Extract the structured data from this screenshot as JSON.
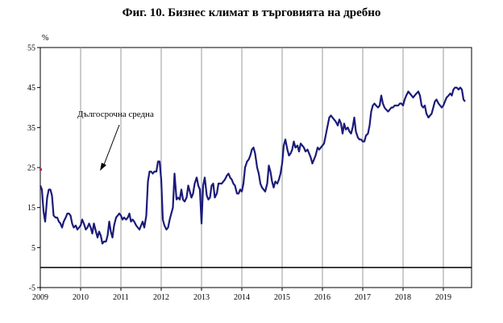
{
  "title": "Фиг. 10. Бизнес климат в търговията на дребно",
  "chart_data": {
    "type": "line",
    "unit": "%",
    "ylim": [
      -5,
      55
    ],
    "yticks": [
      -5,
      5,
      15,
      25,
      35,
      45,
      55
    ],
    "x_years": [
      "2009",
      "2010",
      "2011",
      "2012",
      "2013",
      "2014",
      "2015",
      "2016",
      "2017",
      "2018",
      "2019"
    ],
    "xlim": [
      2009.0,
      2019.7
    ],
    "grid": "vertical year lines",
    "zero_line": 0,
    "long_term_average": 24.5,
    "annotation": "Дългосрочна средна",
    "series_color": "#1a1a7a",
    "series": [
      {
        "values": [
          [
            2009.0,
            20.5
          ],
          [
            2009.04,
            19.5
          ],
          [
            2009.08,
            14.0
          ],
          [
            2009.12,
            11.5
          ],
          [
            2009.17,
            17.5
          ],
          [
            2009.21,
            19.5
          ],
          [
            2009.25,
            19.5
          ],
          [
            2009.29,
            18.0
          ],
          [
            2009.33,
            13.0
          ],
          [
            2009.38,
            12.5
          ],
          [
            2009.42,
            12.5
          ],
          [
            2009.46,
            11.5
          ],
          [
            2009.5,
            11.0
          ],
          [
            2009.54,
            10.0
          ],
          [
            2009.58,
            11.5
          ],
          [
            2009.63,
            12.5
          ],
          [
            2009.67,
            13.5
          ],
          [
            2009.71,
            13.5
          ],
          [
            2009.75,
            13.0
          ],
          [
            2009.79,
            11.0
          ],
          [
            2009.83,
            10.0
          ],
          [
            2009.88,
            10.5
          ],
          [
            2009.92,
            9.5
          ],
          [
            2010.0,
            10.5
          ],
          [
            2010.04,
            12.0
          ],
          [
            2010.08,
            11.0
          ],
          [
            2010.13,
            9.5
          ],
          [
            2010.17,
            10.0
          ],
          [
            2010.21,
            11.0
          ],
          [
            2010.25,
            10.0
          ],
          [
            2010.29,
            8.5
          ],
          [
            2010.33,
            11.0
          ],
          [
            2010.38,
            9.0
          ],
          [
            2010.42,
            7.5
          ],
          [
            2010.46,
            9.0
          ],
          [
            2010.5,
            8.0
          ],
          [
            2010.54,
            6.0
          ],
          [
            2010.58,
            6.5
          ],
          [
            2010.63,
            6.5
          ],
          [
            2010.67,
            8.0
          ],
          [
            2010.71,
            11.5
          ],
          [
            2010.75,
            9.0
          ],
          [
            2010.79,
            7.5
          ],
          [
            2010.83,
            10.5
          ],
          [
            2010.88,
            12.5
          ],
          [
            2010.92,
            13.0
          ],
          [
            2010.96,
            13.5
          ],
          [
            2011.0,
            13.0
          ],
          [
            2011.04,
            12.0
          ],
          [
            2011.08,
            12.5
          ],
          [
            2011.13,
            12.0
          ],
          [
            2011.17,
            12.5
          ],
          [
            2011.21,
            13.5
          ],
          [
            2011.25,
            11.5
          ],
          [
            2011.29,
            12.0
          ],
          [
            2011.33,
            11.5
          ],
          [
            2011.38,
            10.5
          ],
          [
            2011.42,
            10.0
          ],
          [
            2011.46,
            9.5
          ],
          [
            2011.5,
            10.5
          ],
          [
            2011.54,
            11.5
          ],
          [
            2011.58,
            10.0
          ],
          [
            2011.63,
            13.0
          ],
          [
            2011.67,
            21.5
          ],
          [
            2011.71,
            24.0
          ],
          [
            2011.75,
            24.0
          ],
          [
            2011.79,
            23.5
          ],
          [
            2011.83,
            24.0
          ],
          [
            2011.88,
            24.0
          ],
          [
            2011.92,
            26.5
          ],
          [
            2011.96,
            26.5
          ],
          [
            2012.0,
            22.0
          ],
          [
            2012.04,
            12.0
          ],
          [
            2012.08,
            10.5
          ],
          [
            2012.13,
            9.5
          ],
          [
            2012.17,
            10.0
          ],
          [
            2012.21,
            12.0
          ],
          [
            2012.25,
            13.5
          ],
          [
            2012.29,
            15.0
          ],
          [
            2012.33,
            23.5
          ],
          [
            2012.38,
            17.0
          ],
          [
            2012.42,
            17.5
          ],
          [
            2012.46,
            17.0
          ],
          [
            2012.5,
            19.5
          ],
          [
            2012.54,
            17.0
          ],
          [
            2012.58,
            16.5
          ],
          [
            2012.63,
            17.5
          ],
          [
            2012.67,
            20.5
          ],
          [
            2012.71,
            19.0
          ],
          [
            2012.75,
            17.5
          ],
          [
            2012.79,
            18.5
          ],
          [
            2012.83,
            21.0
          ],
          [
            2012.88,
            22.5
          ],
          [
            2012.92,
            20.5
          ],
          [
            2012.96,
            19.5
          ],
          [
            2013.0,
            11.0
          ],
          [
            2013.04,
            20.5
          ],
          [
            2013.08,
            22.5
          ],
          [
            2013.13,
            18.0
          ],
          [
            2013.17,
            17.0
          ],
          [
            2013.21,
            17.5
          ],
          [
            2013.25,
            20.5
          ],
          [
            2013.29,
            21.0
          ],
          [
            2013.33,
            17.5
          ],
          [
            2013.38,
            18.5
          ],
          [
            2013.42,
            21.0
          ],
          [
            2013.46,
            21.0
          ],
          [
            2013.5,
            21.0
          ],
          [
            2013.54,
            21.5
          ],
          [
            2013.58,
            22.0
          ],
          [
            2013.63,
            23.0
          ],
          [
            2013.67,
            23.5
          ],
          [
            2013.71,
            22.5
          ],
          [
            2013.75,
            22.0
          ],
          [
            2013.79,
            21.0
          ],
          [
            2013.83,
            20.5
          ],
          [
            2013.88,
            18.5
          ],
          [
            2013.92,
            18.5
          ],
          [
            2013.96,
            19.5
          ],
          [
            2014.0,
            19.0
          ],
          [
            2014.04,
            21.0
          ],
          [
            2014.08,
            25.0
          ],
          [
            2014.13,
            26.5
          ],
          [
            2014.17,
            27.0
          ],
          [
            2014.21,
            28.0
          ],
          [
            2014.25,
            29.5
          ],
          [
            2014.29,
            30.0
          ],
          [
            2014.33,
            28.5
          ],
          [
            2014.38,
            25.0
          ],
          [
            2014.42,
            23.5
          ],
          [
            2014.46,
            21.0
          ],
          [
            2014.5,
            20.0
          ],
          [
            2014.54,
            19.5
          ],
          [
            2014.58,
            19.0
          ],
          [
            2014.63,
            21.0
          ],
          [
            2014.67,
            25.5
          ],
          [
            2014.71,
            24.0
          ],
          [
            2014.75,
            21.5
          ],
          [
            2014.79,
            20.0
          ],
          [
            2014.83,
            21.5
          ],
          [
            2014.88,
            21.0
          ],
          [
            2014.92,
            22.0
          ],
          [
            2014.96,
            23.5
          ],
          [
            2015.0,
            26.0
          ],
          [
            2015.04,
            30.5
          ],
          [
            2015.08,
            32.0
          ],
          [
            2015.13,
            29.5
          ],
          [
            2015.17,
            28.0
          ],
          [
            2015.21,
            28.5
          ],
          [
            2015.25,
            29.5
          ],
          [
            2015.29,
            31.5
          ],
          [
            2015.33,
            30.0
          ],
          [
            2015.38,
            30.5
          ],
          [
            2015.42,
            29.0
          ],
          [
            2015.46,
            31.0
          ],
          [
            2015.5,
            30.5
          ],
          [
            2015.54,
            30.0
          ],
          [
            2015.58,
            29.0
          ],
          [
            2015.63,
            29.5
          ],
          [
            2015.67,
            28.5
          ],
          [
            2015.71,
            27.5
          ],
          [
            2015.75,
            26.0
          ],
          [
            2015.79,
            27.0
          ],
          [
            2015.83,
            28.0
          ],
          [
            2015.88,
            30.0
          ],
          [
            2015.92,
            29.5
          ],
          [
            2015.96,
            30.0
          ],
          [
            2016.0,
            30.5
          ],
          [
            2016.04,
            31.0
          ],
          [
            2016.08,
            33.0
          ],
          [
            2016.13,
            35.5
          ],
          [
            2016.17,
            37.5
          ],
          [
            2016.21,
            38.0
          ],
          [
            2016.25,
            37.5
          ],
          [
            2016.29,
            37.0
          ],
          [
            2016.33,
            36.5
          ],
          [
            2016.38,
            35.5
          ],
          [
            2016.42,
            37.0
          ],
          [
            2016.46,
            36.0
          ],
          [
            2016.5,
            33.5
          ],
          [
            2016.54,
            36.0
          ],
          [
            2016.58,
            34.5
          ],
          [
            2016.63,
            35.0
          ],
          [
            2016.67,
            34.0
          ],
          [
            2016.71,
            33.5
          ],
          [
            2016.75,
            35.0
          ],
          [
            2016.79,
            37.5
          ],
          [
            2016.83,
            34.0
          ],
          [
            2016.88,
            32.5
          ],
          [
            2016.92,
            32.0
          ],
          [
            2016.96,
            32.0
          ],
          [
            2017.0,
            31.5
          ],
          [
            2017.04,
            31.5
          ],
          [
            2017.08,
            33.0
          ],
          [
            2017.13,
            33.5
          ],
          [
            2017.17,
            35.5
          ],
          [
            2017.21,
            39.0
          ],
          [
            2017.25,
            40.5
          ],
          [
            2017.29,
            41.0
          ],
          [
            2017.33,
            40.5
          ],
          [
            2017.38,
            40.0
          ],
          [
            2017.42,
            40.5
          ],
          [
            2017.46,
            43.0
          ],
          [
            2017.5,
            41.0
          ],
          [
            2017.54,
            40.0
          ],
          [
            2017.58,
            39.5
          ],
          [
            2017.63,
            39.0
          ],
          [
            2017.67,
            39.5
          ],
          [
            2017.71,
            40.0
          ],
          [
            2017.75,
            40.0
          ],
          [
            2017.79,
            40.5
          ],
          [
            2017.83,
            40.5
          ],
          [
            2017.88,
            40.5
          ],
          [
            2017.92,
            41.0
          ],
          [
            2017.96,
            41.0
          ],
          [
            2018.0,
            40.5
          ],
          [
            2018.04,
            42.0
          ],
          [
            2018.08,
            43.0
          ],
          [
            2018.13,
            44.0
          ],
          [
            2018.17,
            43.5
          ],
          [
            2018.21,
            43.0
          ],
          [
            2018.25,
            42.5
          ],
          [
            2018.29,
            43.0
          ],
          [
            2018.33,
            43.5
          ],
          [
            2018.38,
            44.0
          ],
          [
            2018.42,
            43.0
          ],
          [
            2018.46,
            40.5
          ],
          [
            2018.5,
            40.0
          ],
          [
            2018.54,
            40.5
          ],
          [
            2018.58,
            38.5
          ],
          [
            2018.63,
            37.5
          ],
          [
            2018.67,
            38.0
          ],
          [
            2018.71,
            38.5
          ],
          [
            2018.75,
            40.0
          ],
          [
            2018.79,
            41.5
          ],
          [
            2018.83,
            42.0
          ],
          [
            2018.88,
            41.0
          ],
          [
            2018.92,
            40.5
          ],
          [
            2018.96,
            40.0
          ],
          [
            2019.0,
            40.5
          ],
          [
            2019.04,
            41.5
          ],
          [
            2019.08,
            42.5
          ],
          [
            2019.13,
            43.0
          ],
          [
            2019.17,
            43.5
          ],
          [
            2019.21,
            43.0
          ],
          [
            2019.25,
            44.5
          ],
          [
            2019.29,
            45.0
          ],
          [
            2019.33,
            45.0
          ],
          [
            2019.38,
            44.5
          ],
          [
            2019.42,
            45.0
          ],
          [
            2019.46,
            44.5
          ],
          [
            2019.5,
            42.0
          ],
          [
            2019.54,
            41.5
          ]
        ]
      }
    ]
  }
}
